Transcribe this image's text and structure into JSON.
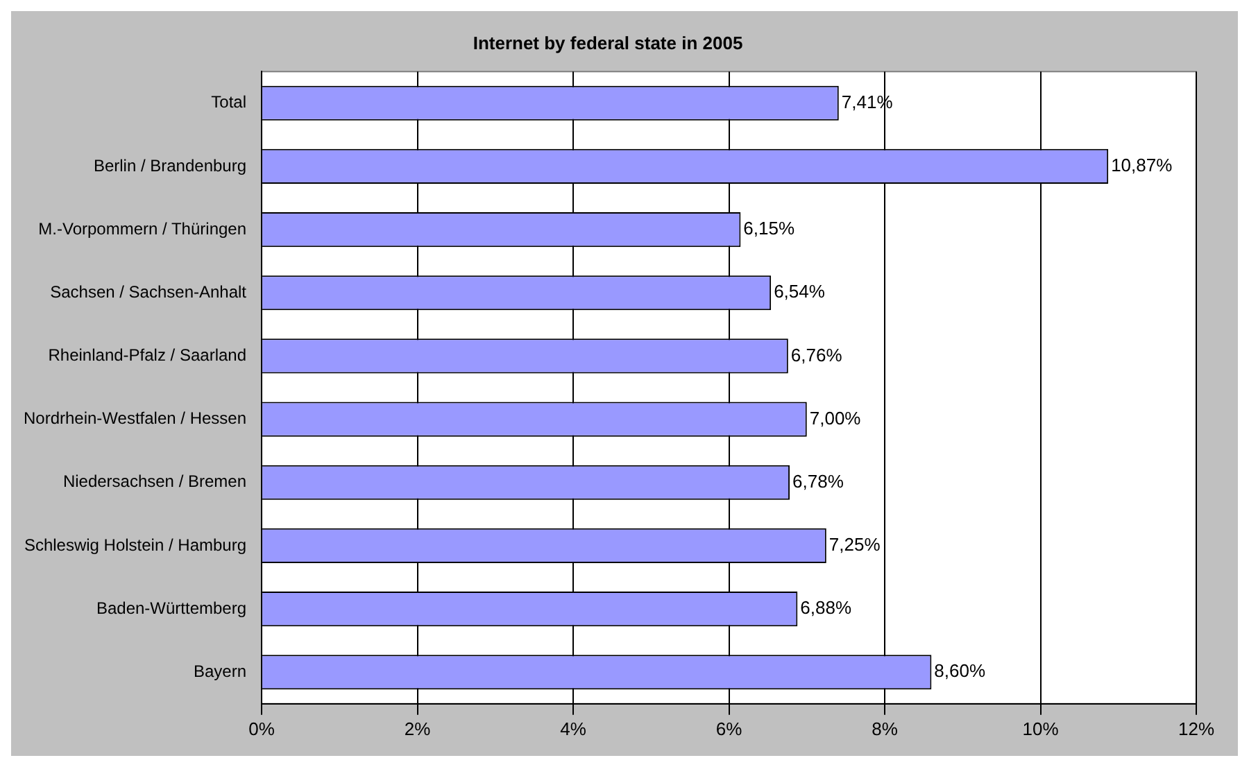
{
  "chart_data": {
    "type": "bar",
    "orientation": "horizontal",
    "title": "Internet by federal state in 2005",
    "categories": [
      "Total",
      "Berlin / Brandenburg",
      "M.-Vorpommern / Thüringen",
      "Sachsen / Sachsen-Anhalt",
      "Rheinland-Pfalz / Saarland",
      "Nordrhein-Westfalen / Hessen",
      "Niedersachsen / Bremen",
      "Schleswig Holstein / Hamburg",
      "Baden-Württemberg",
      "Bayern"
    ],
    "values": [
      7.41,
      10.87,
      6.15,
      6.54,
      6.76,
      7.0,
      6.78,
      7.25,
      6.88,
      8.6
    ],
    "value_labels": [
      "7,41%",
      "10,87%",
      "6,15%",
      "6,54%",
      "6,76%",
      "7,00%",
      "6,78%",
      "7,25%",
      "6,88%",
      "8,60%"
    ],
    "color": "#9999ff",
    "xlim": [
      0,
      12
    ],
    "xticks": [
      {
        "value": 0,
        "label": "0%"
      },
      {
        "value": 2,
        "label": "2%"
      },
      {
        "value": 4,
        "label": "4%"
      },
      {
        "value": 6,
        "label": "6%"
      },
      {
        "value": 8,
        "label": "8%"
      },
      {
        "value": 10,
        "label": "10%"
      },
      {
        "value": 12,
        "label": "12%"
      }
    ],
    "grid": "x",
    "legend": false
  }
}
